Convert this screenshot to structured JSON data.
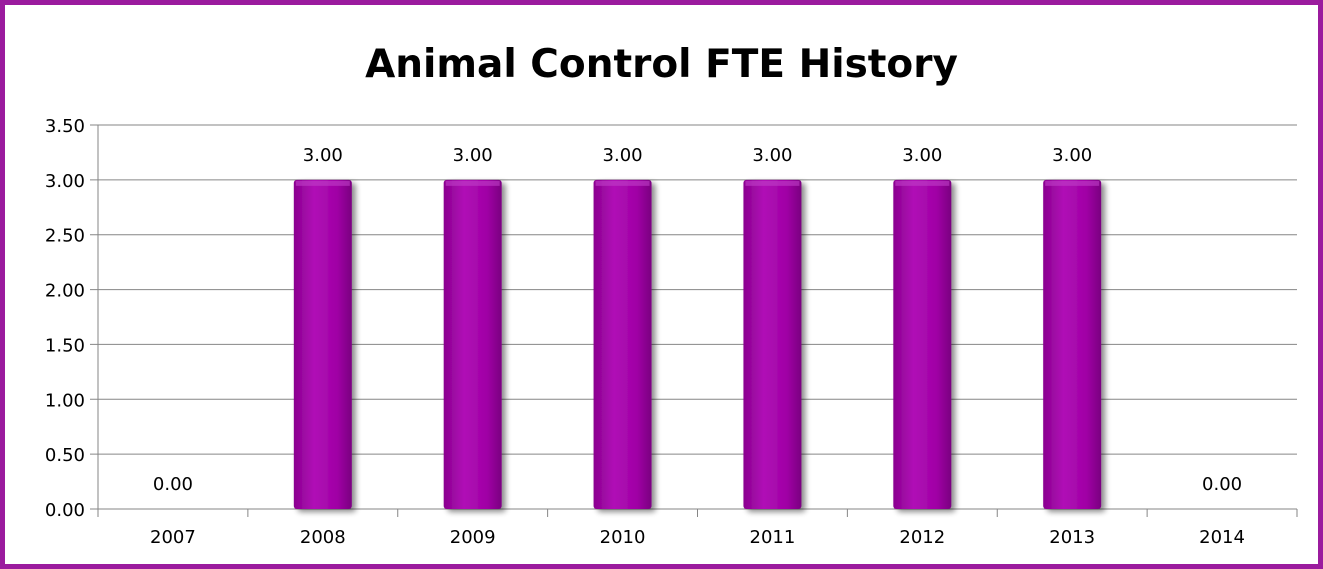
{
  "chart_data": {
    "type": "bar",
    "title": "Animal Control FTE History",
    "categories": [
      "2007",
      "2008",
      "2009",
      "2010",
      "2011",
      "2012",
      "2013",
      "2014"
    ],
    "values": [
      0.0,
      3.0,
      3.0,
      3.0,
      3.0,
      3.0,
      3.0,
      0.0
    ],
    "data_labels": [
      "0.00",
      "3.00",
      "3.00",
      "3.00",
      "3.00",
      "3.00",
      "3.00",
      "0.00"
    ],
    "y_ticks": [
      "0.00",
      "0.50",
      "1.00",
      "1.50",
      "2.00",
      "2.50",
      "3.00",
      "3.50"
    ],
    "ylim": [
      0,
      3.5
    ],
    "xlabel": "",
    "ylabel": "",
    "grid": "horizontal",
    "legend": "none",
    "colors": {
      "bar": "#a000a5",
      "bar_highlight": "#c040c8",
      "bar_shadow": "#7a0080",
      "frame": "#9b1b9e",
      "gridline": "#868686"
    }
  }
}
